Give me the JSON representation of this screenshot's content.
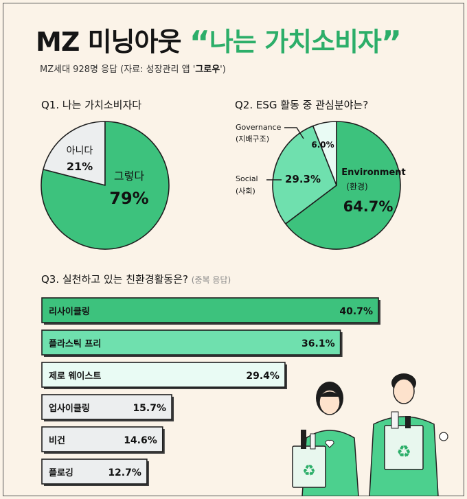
{
  "title": {
    "part1": "MZ 미닝아웃",
    "quote_open": "“",
    "part2": "나는 가치소비자",
    "quote_close": "”"
  },
  "subtitle": {
    "text": "MZ세대 928명 응답 (자료: 성장관리 앱 '",
    "brand": "그로우",
    "close": "')"
  },
  "colors": {
    "green_dark": "#3dc27d",
    "green_mid": "#6fe0ae",
    "green_light": "#cff7e6",
    "mint_pale": "#e9fbf4",
    "gray_light": "#eceeef",
    "outline": "#1f1f1f"
  },
  "chart_data": [
    {
      "type": "pie",
      "title": "Q1. 나는 가치소비자다",
      "slices": [
        {
          "label": "그렇다",
          "value": 79,
          "display": "79%"
        },
        {
          "label": "아니다",
          "value": 21,
          "display": "21%"
        }
      ]
    },
    {
      "type": "pie",
      "title": "Q2. ESG 활동 중 관심분야는?",
      "slices": [
        {
          "label": "Environment",
          "sublabel": "(환경)",
          "value": 64.7,
          "display": "64.7%"
        },
        {
          "label": "Social",
          "sublabel": "(사회)",
          "value": 29.3,
          "display": "29.3%"
        },
        {
          "label": "Governance",
          "sublabel": "(지배구조)",
          "value": 6.0,
          "display": "6.0%"
        }
      ]
    },
    {
      "type": "bar",
      "orientation": "horizontal",
      "title": "Q3. 실천하고 있는 친환경활동은?",
      "note": "(중복 응답)",
      "categories": [
        "리사이클링",
        "플라스틱 프리",
        "제로 웨이스트",
        "업사이클링",
        "비건",
        "플로깅"
      ],
      "values": [
        40.7,
        36.1,
        29.4,
        15.7,
        14.6,
        12.7
      ],
      "display": [
        "40.7%",
        "36.1%",
        "29.4%",
        "15.7%",
        "14.6%",
        "12.7%"
      ]
    }
  ]
}
